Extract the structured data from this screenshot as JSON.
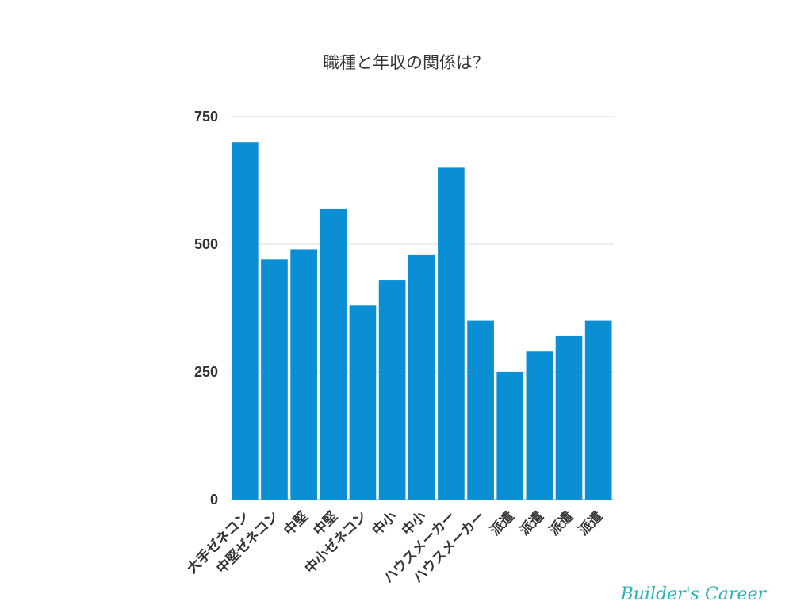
{
  "chart_data": {
    "type": "bar",
    "title": "職種と年収の関係は？",
    "categories": [
      "大手ゼネコン",
      "中堅ゼネコン",
      "中堅",
      "中堅",
      "中小ゼネコン",
      "中小",
      "中小",
      "ハウスメーカー",
      "ハウスメーカー",
      "派遣",
      "派遣",
      "派遣",
      "派遣"
    ],
    "values": [
      700,
      470,
      490,
      570,
      380,
      430,
      480,
      650,
      350,
      250,
      290,
      320,
      350
    ],
    "ylim": [
      0,
      750
    ],
    "yticks": [
      0,
      250,
      500,
      750
    ],
    "grid": true,
    "bar_color": "#0a8ed4",
    "xlabel": "",
    "ylabel": ""
  },
  "logo": {
    "text": "Builder's Career",
    "color": "#2bb3b8"
  }
}
